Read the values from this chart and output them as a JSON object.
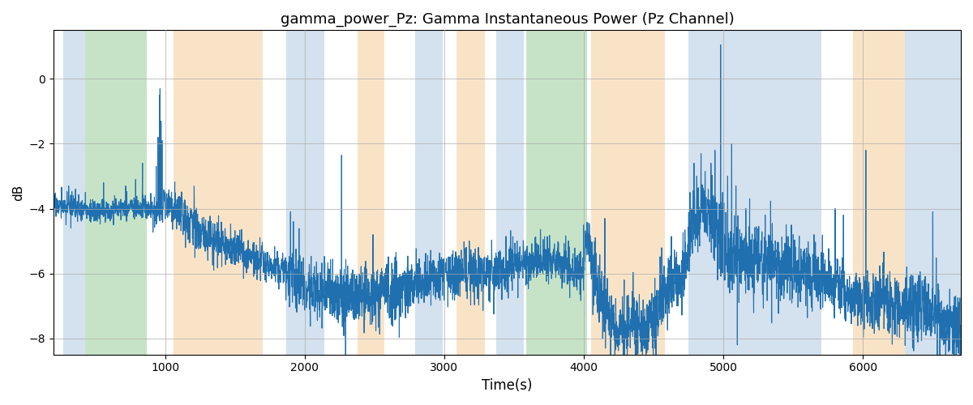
{
  "title": "gamma_power_Pz: Gamma Instantaneous Power (Pz Channel)",
  "xlabel": "Time(s)",
  "ylabel": "dB",
  "xlim": [
    200,
    6700
  ],
  "ylim": [
    -8.5,
    1.5
  ],
  "yticks": [
    -8,
    -6,
    -4,
    -2,
    0
  ],
  "xticks": [
    1000,
    2000,
    3000,
    4000,
    5000,
    6000
  ],
  "line_color": "#2070b0",
  "line_width": 0.8,
  "bg_regions": [
    {
      "xmin": 270,
      "xmax": 430,
      "color": "#aac4de",
      "alpha": 0.5
    },
    {
      "xmin": 430,
      "xmax": 870,
      "color": "#90c990",
      "alpha": 0.5
    },
    {
      "xmin": 1060,
      "xmax": 1700,
      "color": "#f5c890",
      "alpha": 0.5
    },
    {
      "xmin": 1870,
      "xmax": 2140,
      "color": "#aac4de",
      "alpha": 0.5
    },
    {
      "xmin": 2380,
      "xmax": 2570,
      "color": "#f5c890",
      "alpha": 0.5
    },
    {
      "xmin": 2790,
      "xmax": 2990,
      "color": "#aac4de",
      "alpha": 0.5
    },
    {
      "xmin": 3090,
      "xmax": 3290,
      "color": "#f5c890",
      "alpha": 0.5
    },
    {
      "xmin": 3370,
      "xmax": 3570,
      "color": "#aac4de",
      "alpha": 0.5
    },
    {
      "xmin": 3590,
      "xmax": 4020,
      "color": "#90c990",
      "alpha": 0.5
    },
    {
      "xmin": 4050,
      "xmax": 4580,
      "color": "#f5c890",
      "alpha": 0.5
    },
    {
      "xmin": 4750,
      "xmax": 5700,
      "color": "#aac4de",
      "alpha": 0.5
    },
    {
      "xmin": 5930,
      "xmax": 6300,
      "color": "#f5c890",
      "alpha": 0.5
    },
    {
      "xmin": 6300,
      "xmax": 6700,
      "color": "#aac4de",
      "alpha": 0.5
    }
  ],
  "grid_color": "#aaaaaa",
  "grid_alpha": 0.7,
  "title_fontsize": 13,
  "figsize": [
    12,
    5
  ],
  "dpi": 100
}
